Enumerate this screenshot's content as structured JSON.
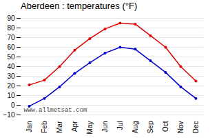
{
  "chart_data": {
    "type": "line",
    "title": "Aberdeen : temperatures (°F)",
    "categories": [
      "Jan",
      "Feb",
      "Mar",
      "Apr",
      "May",
      "Jun",
      "Jul",
      "Aug",
      "Sep",
      "Oct",
      "Nov",
      "Dec"
    ],
    "series": [
      {
        "color": "#dd0000",
        "values": [
          21,
          26,
          40,
          57,
          69,
          79,
          85,
          84,
          72,
          60,
          40,
          25
        ]
      },
      {
        "color": "#0000cc",
        "values": [
          -1,
          7,
          19,
          33,
          44,
          54,
          60,
          58,
          46,
          34,
          19,
          7
        ]
      }
    ],
    "ylim": [
      -10,
      90
    ],
    "yticks": [
      -10,
      0,
      10,
      20,
      30,
      40,
      50,
      60,
      70,
      80,
      90
    ],
    "grid": true,
    "marker": "circle",
    "annotations": [
      "www.allmetsat.com"
    ]
  }
}
